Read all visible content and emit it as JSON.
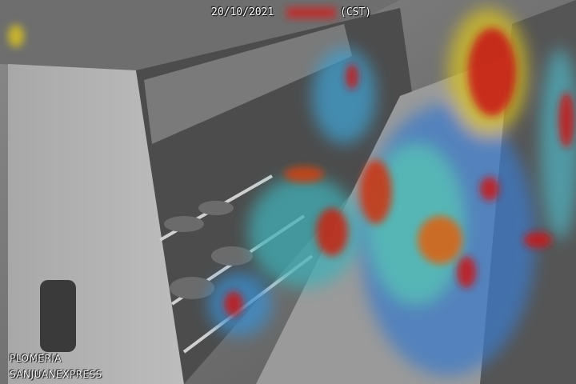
{
  "overlay": {
    "date": "20/10/2021",
    "timezone": "(CST)",
    "caption_line1": "PLOMERIA",
    "caption_line2": "SANJUANEXPRESS"
  }
}
